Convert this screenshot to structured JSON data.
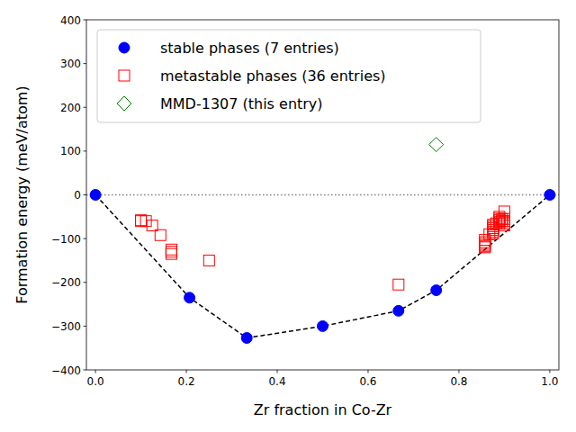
{
  "chart_data": {
    "type": "scatter",
    "x_label": "Zr fraction in Co-Zr",
    "y_label": "Formation energy (meV/atom)",
    "xlim": [
      -0.02,
      1.02
    ],
    "ylim": [
      -400,
      400
    ],
    "xticks": [
      {
        "value": 0,
        "label": "0.0"
      },
      0.2,
      0.4,
      0.6,
      0.8,
      {
        "value": 1,
        "label": "1.0"
      }
    ],
    "yticks": [
      {
        "value": -400,
        "label": "−400"
      },
      {
        "value": -300,
        "label": "−300"
      },
      {
        "value": -200,
        "label": "−200"
      },
      {
        "value": -100,
        "label": "−100"
      },
      0,
      100,
      200,
      300,
      400
    ],
    "legend": "upper-left",
    "series": [
      {
        "type": "line",
        "line_style": "dotted",
        "color": "#808080",
        "x": [
          -0.02,
          1.02
        ],
        "values": [
          0,
          0
        ]
      },
      {
        "name": "stable phases (7 entries)",
        "type": "line",
        "line_style": "dashed",
        "marker": "circle",
        "color": "#0000ff",
        "x": [
          0,
          0.207,
          0.333,
          0.5,
          0.667,
          0.75,
          1
        ],
        "values": [
          0,
          -235,
          -327,
          -300,
          -265,
          -218,
          0
        ]
      },
      {
        "name": "metastable phases (36 entries)",
        "type": "scatter",
        "marker": "open-square",
        "color": "#ff0000",
        "x": [
          0.1,
          0.1,
          0.111,
          0.125,
          0.143,
          0.167,
          0.167,
          0.167,
          0.25,
          0.667,
          0.857,
          0.857,
          0.857,
          0.857,
          0.857,
          0.857,
          0.867,
          0.875,
          0.875,
          0.875,
          0.875,
          0.875,
          0.875,
          0.882,
          0.889,
          0.889,
          0.889,
          0.889,
          0.889,
          0.895,
          0.895,
          0.9,
          0.9,
          0.9,
          0.9,
          0.9
        ],
        "values": [
          -58,
          -60,
          -60,
          -70,
          -92,
          -125,
          -130,
          -135,
          -150,
          -205,
          -103,
          -108,
          -112,
          -116,
          -118,
          -120,
          -90,
          -68,
          -72,
          -76,
          -80,
          -84,
          -88,
          -65,
          -50,
          -54,
          -58,
          -62,
          -66,
          -55,
          -60,
          -38,
          -55,
          -60,
          -65,
          -70
        ]
      },
      {
        "name": "MMD-1307 (this entry)",
        "type": "scatter",
        "marker": "open-diamond",
        "color": "#008000",
        "x": [
          0.75
        ],
        "values": [
          115
        ]
      }
    ]
  }
}
